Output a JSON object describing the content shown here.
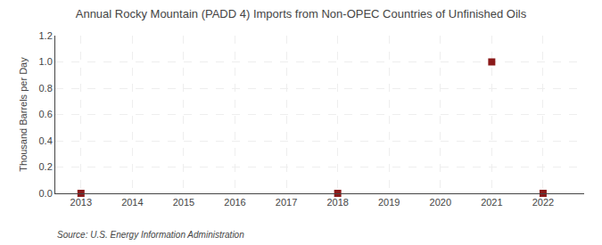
{
  "chart_data": {
    "type": "scatter",
    "title": "Annual Rocky Mountain (PADD 4) Imports from Non-OPEC Countries of Unfinished Oils",
    "ylabel": "Thousand Barrels per Day",
    "annotations": [
      "Source: U.S. Energy Information Administration"
    ],
    "x": [
      2013,
      2018,
      2021,
      2022
    ],
    "values": [
      0.0,
      0.0,
      1.0,
      0.0
    ],
    "color": "#8b1a1a",
    "marker": "square",
    "xlim": [
      2012.5,
      2022.8
    ],
    "ylim": [
      0.0,
      1.2
    ],
    "xticks": [
      2013,
      2014,
      2015,
      2016,
      2017,
      2018,
      2019,
      2020,
      2021,
      2022
    ],
    "yticks": [
      {
        "value": 0.0,
        "label": "0.0"
      },
      0.2,
      0.4,
      0.6,
      0.8,
      {
        "value": 1.0,
        "label": "1.0"
      },
      1.2
    ],
    "grid": true
  }
}
